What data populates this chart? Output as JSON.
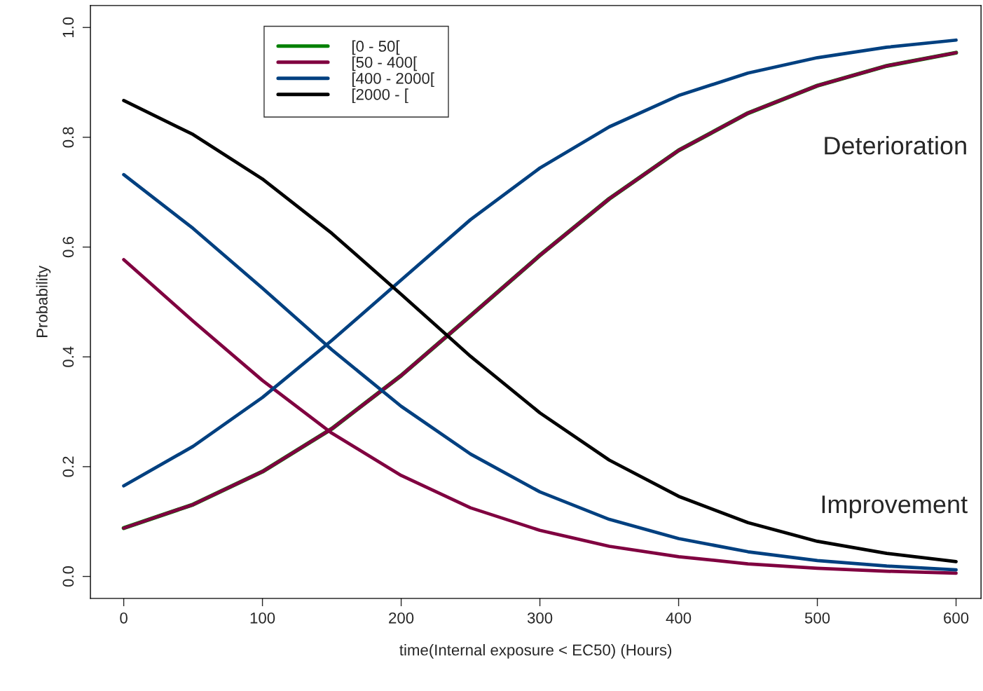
{
  "chart_data": {
    "type": "line",
    "xlabel": "time(Internal exposure < EC50) (Hours)",
    "ylabel": "Probability",
    "x": [
      0,
      50,
      100,
      150,
      200,
      250,
      300,
      350,
      400,
      450,
      500,
      550,
      600
    ],
    "xlim": [
      -24,
      618
    ],
    "xticks": [
      0,
      100,
      200,
      300,
      400,
      500,
      600
    ],
    "ylim": [
      -0.04,
      1.04
    ],
    "yticks": [
      {
        "value": 0,
        "label": "0.0"
      },
      0.2,
      0.4,
      0.6,
      0.8,
      {
        "value": 1,
        "label": "1.0"
      }
    ],
    "grid": false,
    "legend": "top left",
    "marker": "none",
    "line_style": "solid",
    "annotations": [
      "Deterioration",
      "Improvement"
    ],
    "series": [
      {
        "name": "[0 - 50[",
        "color": "#008000",
        "values": [
          0.088,
          0.131,
          0.191,
          0.269,
          0.366,
          0.475,
          0.585,
          0.688,
          0.776,
          0.844,
          0.894,
          0.93,
          0.954
        ]
      },
      {
        "name": "[50 - 400[",
        "color": "#800040",
        "values": [
          0.088,
          0.131,
          0.191,
          0.269,
          0.366,
          0.475,
          0.585,
          0.688,
          0.776,
          0.844,
          0.894,
          0.93,
          0.954
        ]
      },
      {
        "color": "#800040",
        "values": [
          0.577,
          0.465,
          0.357,
          0.261,
          0.184,
          0.125,
          0.084,
          0.055,
          0.036,
          0.023,
          0.015,
          0.0095,
          0.006
        ]
      },
      {
        "name": "[400 - 2000[",
        "color": "#004080",
        "values": [
          0.165,
          0.237,
          0.326,
          0.43,
          0.54,
          0.65,
          0.744,
          0.819,
          0.876,
          0.917,
          0.945,
          0.964,
          0.977
        ]
      },
      {
        "color": "#004080",
        "values": [
          0.732,
          0.634,
          0.525,
          0.413,
          0.31,
          0.223,
          0.154,
          0.104,
          0.069,
          0.045,
          0.029,
          0.019,
          0.012
        ]
      },
      {
        "name": "[2000 - [",
        "color": "#000000",
        "values": [
          0.867,
          0.805,
          0.724,
          0.625,
          0.514,
          0.401,
          0.298,
          0.212,
          0.146,
          0.098,
          0.064,
          0.042,
          0.027
        ]
      }
    ]
  }
}
